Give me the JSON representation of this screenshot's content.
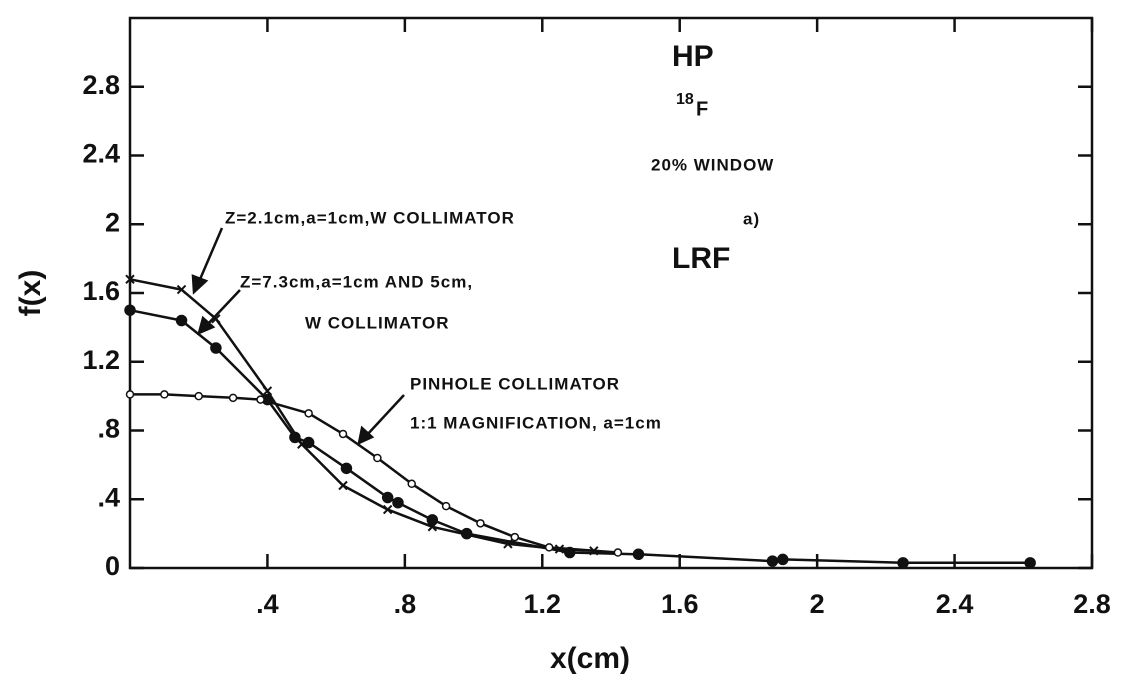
{
  "chart_data": {
    "type": "line",
    "xlabel": "x(cm)",
    "ylabel": "f(x)",
    "xlim": [
      0,
      2.8
    ],
    "ylim": [
      0,
      3.2
    ],
    "xticks": [
      {
        "value": 0.4,
        "label": ".4"
      },
      {
        "value": 0.8,
        "label": ".8"
      },
      1.2,
      1.6,
      2.0,
      2.4,
      2.8
    ],
    "yticks": [
      0,
      {
        "value": 0.4,
        "label": ".4"
      },
      {
        "value": 0.8,
        "label": ".8"
      },
      1.2,
      1.6,
      2.0,
      2.4,
      2.8
    ],
    "annotations": {
      "detector": "HP",
      "isotope_mass": "18",
      "isotope_symbol": "F",
      "window": "20% WINDOW",
      "panel": "a)",
      "function": "LRF"
    },
    "series": [
      {
        "name_lines": [
          "Z=2.1cm,a=1cm,W COLLIMATOR"
        ],
        "color": "#111111",
        "marker": "x",
        "x": [
          0,
          0.15,
          0.25,
          0.4,
          0.5,
          0.62,
          0.75,
          0.88,
          1.1,
          1.25,
          1.35
        ],
        "values": [
          1.68,
          1.62,
          1.45,
          1.03,
          0.72,
          0.48,
          0.34,
          0.24,
          0.14,
          0.11,
          0.1
        ]
      },
      {
        "name_lines": [
          "Z=7.3cm,a=1cm AND 5cm,",
          "W COLLIMATOR"
        ],
        "color": "#111111",
        "marker": "filled",
        "x": [
          0,
          0.15,
          0.25,
          0.4,
          0.48,
          0.52,
          0.63,
          0.75,
          0.78,
          0.88,
          0.98,
          1.28,
          1.48,
          1.87,
          1.9,
          2.25,
          2.62
        ],
        "values": [
          1.5,
          1.44,
          1.28,
          0.98,
          0.76,
          0.73,
          0.58,
          0.41,
          0.38,
          0.28,
          0.2,
          0.09,
          0.08,
          0.04,
          0.05,
          0.03,
          0.03
        ]
      },
      {
        "name_lines": [
          "PINHOLE COLLIMATOR",
          "1:1 MAGNIFICATION, a=1cm"
        ],
        "color": "#111111",
        "marker": "open",
        "x": [
          0,
          0.1,
          0.2,
          0.3,
          0.38,
          0.52,
          0.62,
          0.72,
          0.82,
          0.92,
          1.02,
          1.12,
          1.22,
          1.42
        ],
        "values": [
          1.01,
          1.01,
          1.0,
          0.99,
          0.98,
          0.9,
          0.78,
          0.64,
          0.49,
          0.36,
          0.26,
          0.18,
          0.12,
          0.09
        ]
      }
    ]
  }
}
